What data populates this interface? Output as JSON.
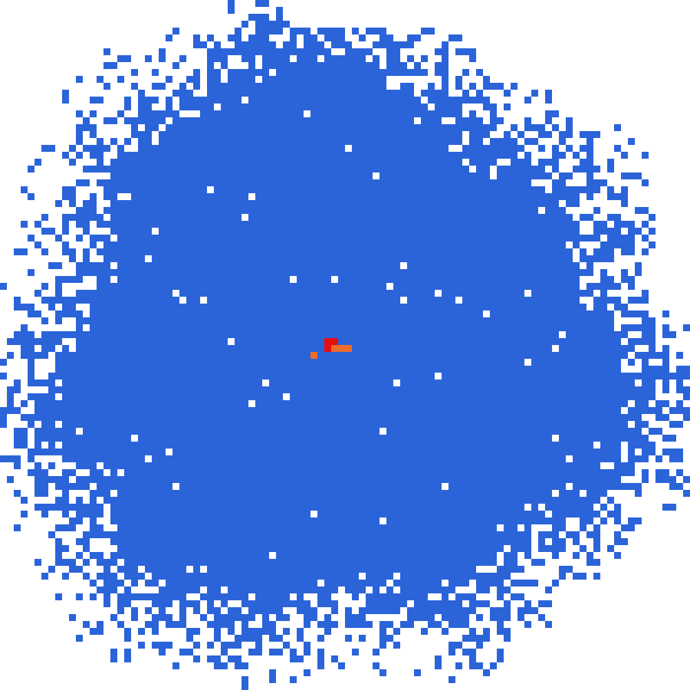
{
  "board": {
    "description_visible_text": "",
    "grid": {
      "columns": 100,
      "rows": 100
    },
    "cell_colors": {
      "empty": "#ffffff",
      "territory": "#2b63d9",
      "player": "#e50f0f",
      "player_trail": "#ef6c2a"
    },
    "territory": {
      "shape": "rough-circle",
      "center_cell": [
        48,
        50
      ],
      "fill_density_core": 0.99,
      "edge_noise": "high"
    },
    "player": {
      "color_name": "red",
      "cells": [
        [
          47,
          49
        ],
        [
          48,
          49
        ],
        [
          47,
          50
        ]
      ]
    },
    "player_trail": {
      "color_name": "orange",
      "cells": [
        [
          48,
          50
        ],
        [
          49,
          50
        ],
        [
          50,
          50
        ],
        [
          45,
          51
        ]
      ]
    }
  }
}
